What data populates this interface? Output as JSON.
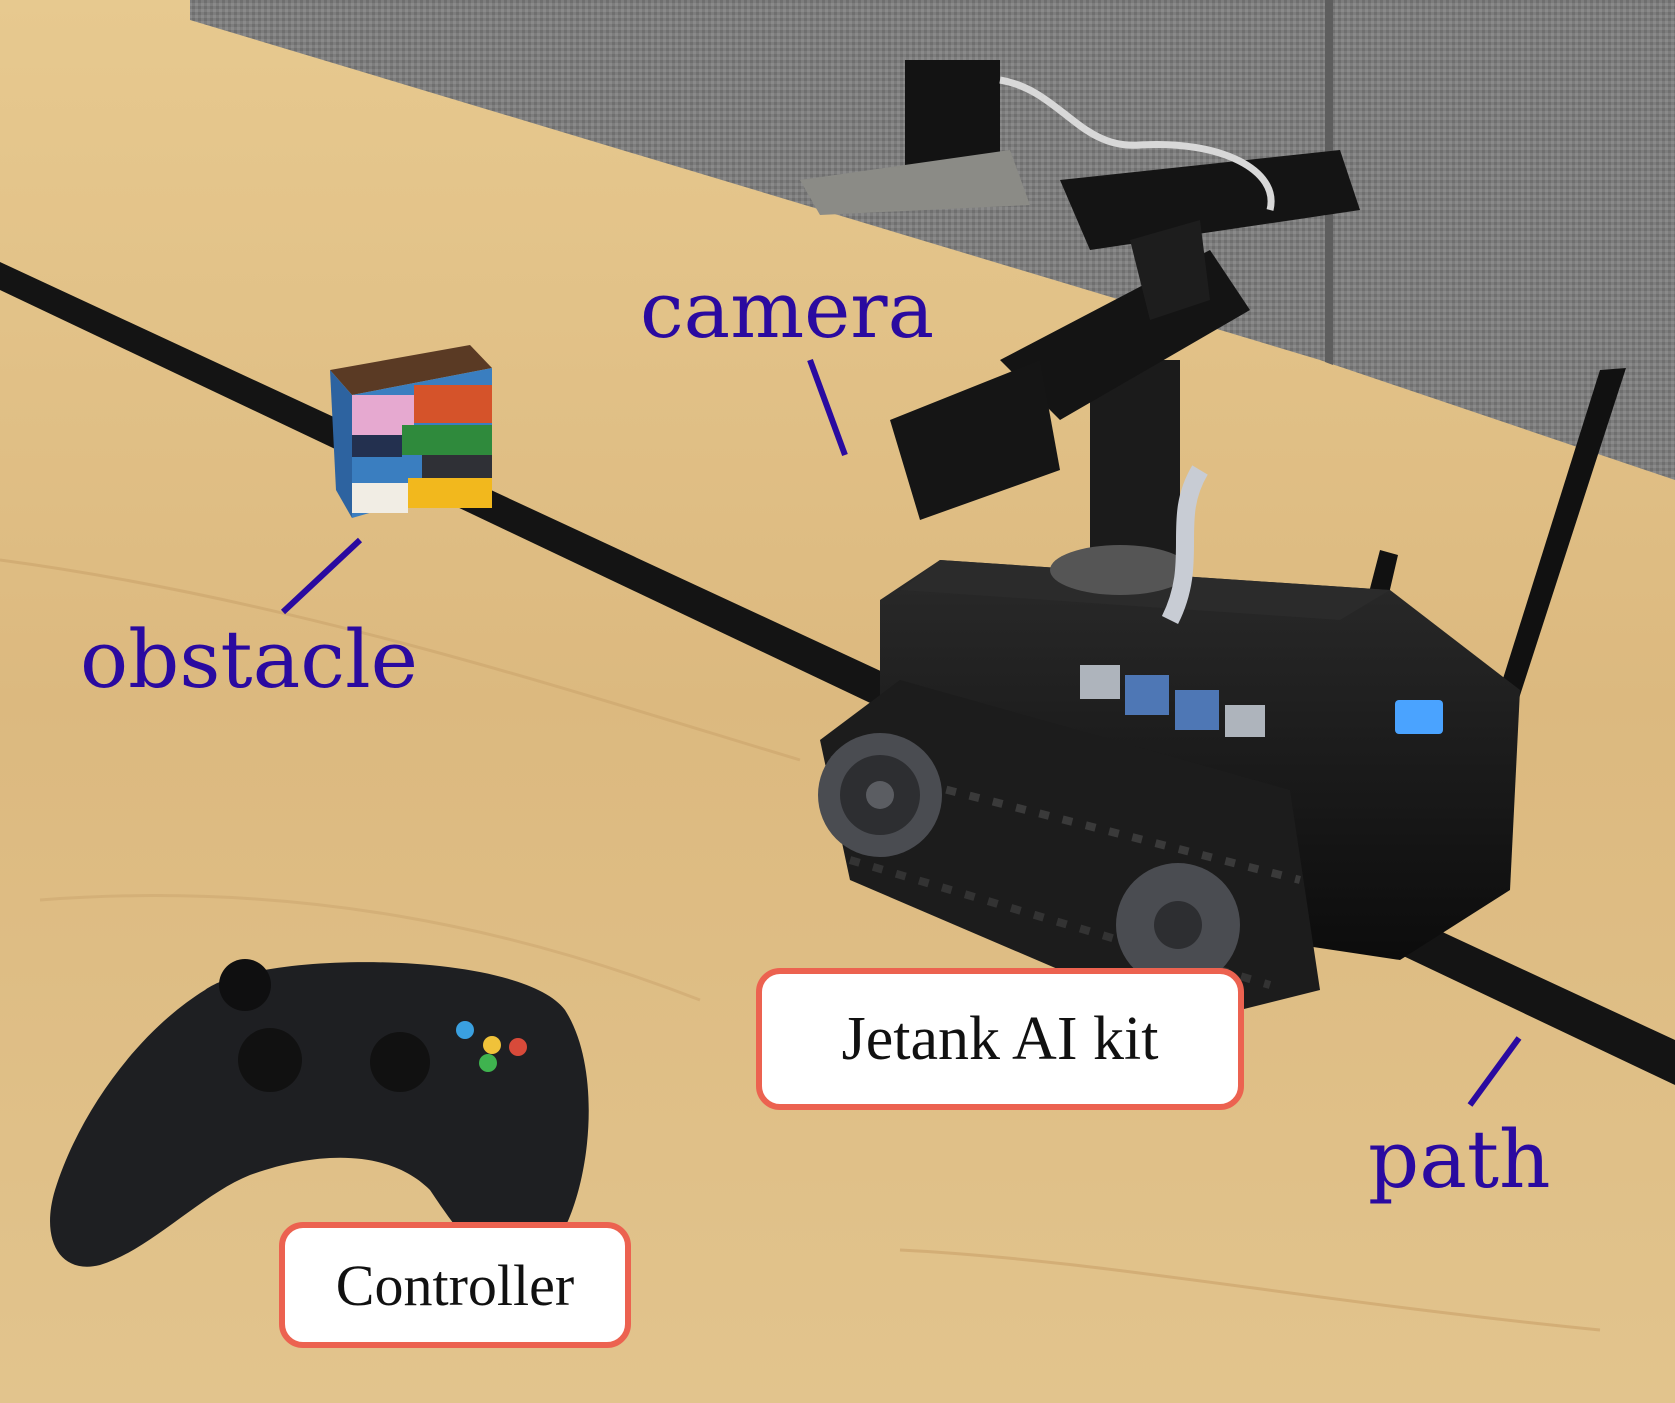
{
  "annotations": {
    "camera": "camera",
    "obstacle": "obstacle",
    "path": "path"
  },
  "labels": {
    "jetank": "Jetank AI kit",
    "controller": "Controller"
  },
  "colors": {
    "annotation_text": "#2a0aa0",
    "label_border": "#ec6250",
    "table": "#d9b57f",
    "wall": "#7b7b7b",
    "tape": "#141414"
  },
  "icons": [
    "robot-tank",
    "arm",
    "gamepad",
    "lego-block",
    "antenna"
  ]
}
